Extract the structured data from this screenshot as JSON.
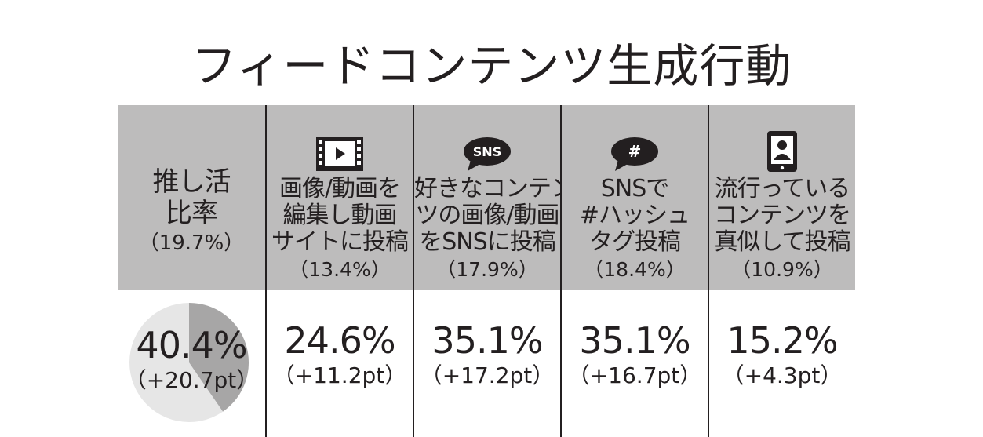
{
  "title": "フィードコンテンツ生成行動",
  "chart_data": {
    "type": "table",
    "title": "フィードコンテンツ生成行動",
    "columns": [
      {
        "label_lines": [
          "推し活",
          "比率"
        ],
        "base": "（19.7%）",
        "value": "40.4%",
        "delta": "（+20.7pt）",
        "value_number": 40.4,
        "icon": "none"
      },
      {
        "label_lines": [
          "画像/動画を",
          "編集し動画",
          "サイトに投稿"
        ],
        "base": "（13.4%）",
        "value": "24.6%",
        "delta": "（+11.2pt）",
        "value_number": 24.6,
        "icon": "film-strip-play-icon"
      },
      {
        "label_lines": [
          "好きなコンテン",
          "ツの画像/動画",
          "をSNSに投稿"
        ],
        "base": "（17.9%）",
        "value": "35.1%",
        "delta": "（+17.2pt）",
        "value_number": 35.1,
        "icon": "sns-speech-bubble-icon",
        "icon_text": "SNS"
      },
      {
        "label_lines": [
          "SNSで",
          "#ハッシュ",
          "タグ投稿"
        ],
        "base": "（18.4%）",
        "value": "35.1%",
        "delta": "（+16.7pt）",
        "value_number": 35.1,
        "icon": "hashtag-speech-bubble-icon",
        "icon_text": "#"
      },
      {
        "label_lines": [
          "流行っている",
          "コンテンツを",
          "真似して投稿"
        ],
        "base": "（10.9%）",
        "value": "15.2%",
        "delta": "（+4.3pt）",
        "value_number": 15.2,
        "icon": "tablet-user-icon"
      }
    ],
    "pie": {
      "value": 40.4,
      "total": 100
    }
  },
  "colors": {
    "header_bg": "#bdbcbc",
    "text": "#231f20",
    "pie_fill": "#a7a6a6",
    "pie_rest": "#e6e6e6"
  }
}
